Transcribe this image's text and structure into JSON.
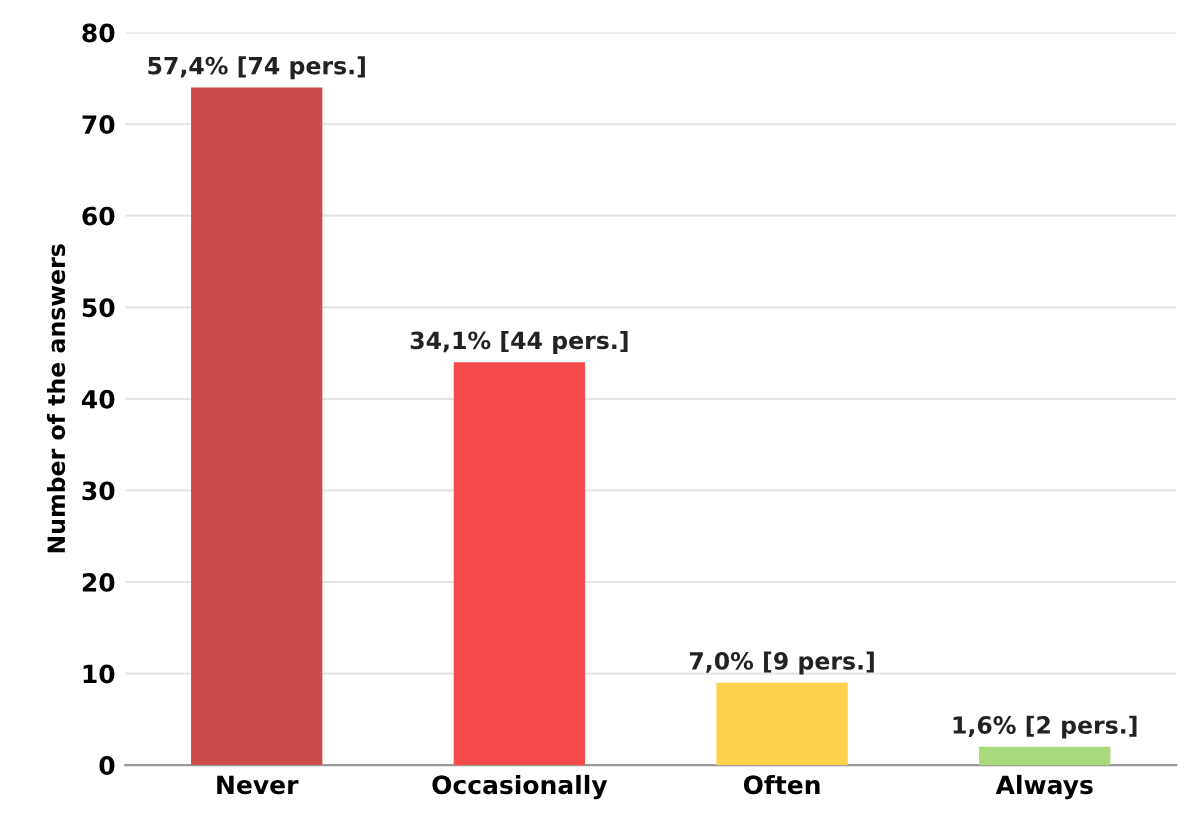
{
  "chart_data": {
    "type": "bar",
    "ylabel": "Number of the answers",
    "categories": [
      "Never",
      "Occasionally",
      "Often",
      "Always"
    ],
    "values": [
      74,
      44,
      9,
      2
    ],
    "colors": [
      "#cd4b4b",
      "#f54b4b",
      "#fdd14b",
      "#a9d97a"
    ],
    "value_labels": [
      "57,4% [74 pers.]",
      "34,1% [44 pers.]",
      "7,0% [9 pers.]",
      "1,6% [2 pers.]"
    ],
    "ylim": [
      0,
      80
    ],
    "yticks": [
      0,
      10,
      20,
      30,
      40,
      50,
      60,
      70,
      80
    ],
    "grid": "y",
    "legend": false
  }
}
